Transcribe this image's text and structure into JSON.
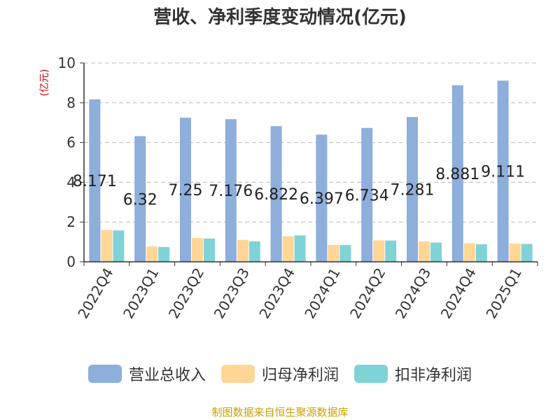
{
  "chart_data": {
    "type": "bar",
    "title": "营收、净利季度变动情况(亿元)",
    "ylabel": "(亿元)",
    "xlabel": "",
    "ylim": [
      0,
      10
    ],
    "yticks": [
      0,
      2,
      4,
      6,
      8,
      10
    ],
    "grid": true,
    "legend_position": "bottom",
    "categories": [
      "2022Q4",
      "2023Q1",
      "2023Q2",
      "2023Q3",
      "2023Q4",
      "2024Q1",
      "2024Q2",
      "2024Q3",
      "2024Q4",
      "2025Q1"
    ],
    "series": [
      {
        "name": "营业总收入",
        "color": "#8eaedb",
        "values": [
          8.171,
          6.32,
          7.25,
          7.176,
          6.822,
          6.397,
          6.734,
          7.281,
          8.881,
          9.111
        ],
        "data_labels": [
          "8.171",
          "6.32",
          "7.25",
          "7.176",
          "6.822",
          "6.397",
          "6.734",
          "7.281",
          "8.881",
          "9.111"
        ]
      },
      {
        "name": "归母净利润",
        "color": "#ffd696",
        "values": [
          1.6,
          0.78,
          1.2,
          1.1,
          1.28,
          0.85,
          1.08,
          1.02,
          0.93,
          0.92
        ]
      },
      {
        "name": "扣非净利润",
        "color": "#7fd3d6",
        "values": [
          1.58,
          0.75,
          1.17,
          1.03,
          1.33,
          0.84,
          1.07,
          0.97,
          0.88,
          0.9
        ]
      }
    ]
  },
  "source_text": "制图数据来自恒生聚源数据库"
}
